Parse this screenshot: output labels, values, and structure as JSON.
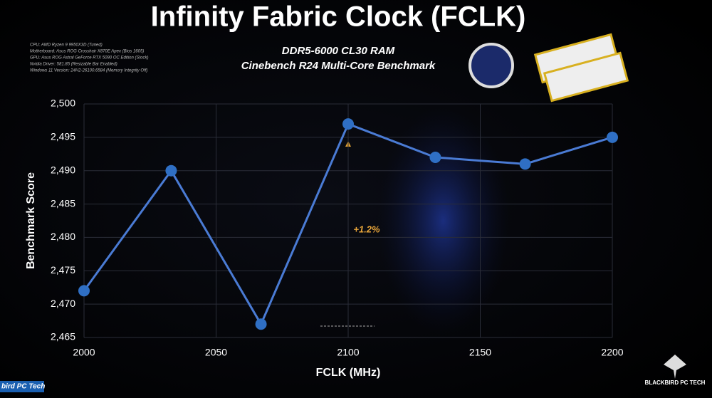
{
  "chart_data": {
    "type": "line",
    "title": "Infinity Fabric Clock (FCLK)",
    "subtitle": [
      "DDR5-6000 CL30 RAM",
      "Cinebench R24 Multi-Core Benchmark"
    ],
    "specs": [
      "CPU: AMD Ryzen 9 9950X3D (Tuned)",
      "Motherboard: Asus ROG Crosshair X870E Apex (Bios 1605)",
      "GPU: Asus ROG Astral GeForce RTX 5090 OC Edition (Stock)",
      "Nvidia Driver: 581.85 (Resizable Bar Enabled)",
      "Windows 11 Version: 24H2-26100.6584 (Memory Integrity Off)"
    ],
    "x_label": "FCLK (MHz)",
    "y_label": "Benchmark Score",
    "x": [
      2000,
      2033,
      2067,
      2100,
      2133,
      2167,
      2200
    ],
    "series": [
      {
        "name": "Benchmark Score",
        "color": "#4a7bd4",
        "values": [
          2472,
          2490,
          2467,
          2497,
          2492,
          2491,
          2495
        ]
      }
    ],
    "xlim": [
      2000,
      2200
    ],
    "xticks": [
      2000,
      2050,
      2100,
      2150,
      2200
    ],
    "ylim": [
      2465,
      2500
    ],
    "yticks": [
      {
        "value": 2465,
        "label": "2,465"
      },
      {
        "value": 2470,
        "label": "2,470"
      },
      {
        "value": 2475,
        "label": "2,475"
      },
      {
        "value": 2480,
        "label": "2,480"
      },
      {
        "value": 2485,
        "label": "2,485"
      },
      {
        "value": 2490,
        "label": "2,490"
      },
      {
        "value": 2495,
        "label": "2,495"
      },
      {
        "value": 2500,
        "label": "2,500"
      }
    ],
    "grid": true,
    "annotation": "+1.2%",
    "brand": "BLACKBIRD PC TECH",
    "channel": "bird PC Tech"
  }
}
